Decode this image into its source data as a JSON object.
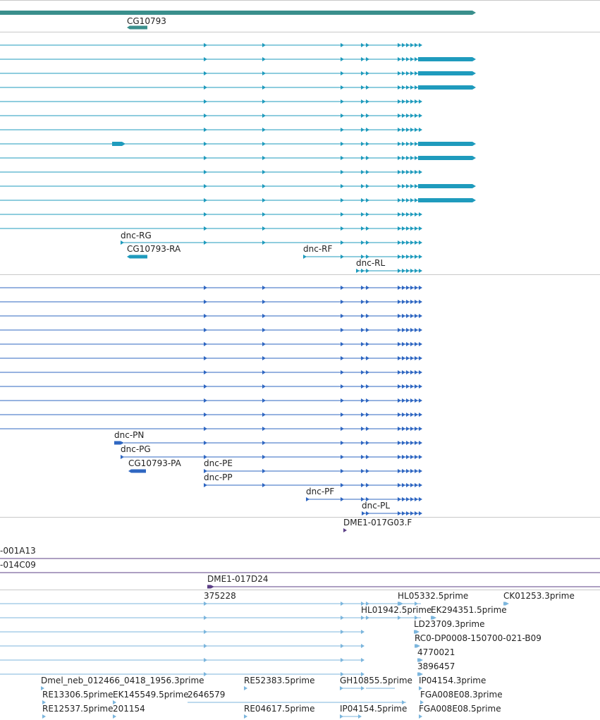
{
  "colors": {
    "gene": "#3a8f8c",
    "transcript": "#1f9bbd",
    "protein": "#2f67c2",
    "clone": "#5b3f86",
    "est": "#7cb6dd",
    "divider": "#c8c8c8"
  },
  "gene_track": {
    "labels": {
      "cg10793": "CG10793"
    }
  },
  "transcript_track": {
    "labels": {
      "dnc_rg": "dnc-RG",
      "cg10793_ra": "CG10793-RA",
      "dnc_rf": "dnc-RF",
      "dnc_rl": "dnc-RL"
    }
  },
  "protein_track": {
    "labels": {
      "dnc_pn": "dnc-PN",
      "dnc_pg": "dnc-PG",
      "cg10793_pa": "CG10793-PA",
      "dnc_pe": "dnc-PE",
      "dnc_pp": "dnc-PP",
      "dnc_pf": "dnc-PF",
      "dnc_pl": "dnc-PL"
    }
  },
  "clone_track": {
    "labels": {
      "dme1_017g03": "DME1-017G03.F",
      "clone_001a13": "-001A13",
      "clone_014c09": "-014C09",
      "dme1_017d24": "DME1-017D24"
    }
  },
  "est_track": {
    "labels": {
      "e375228": "375228",
      "hl05332": "HL05332.5prime",
      "ck01253": "CK01253.3prime",
      "hl01942": "HL01942.5prime",
      "ek294351": "EK294351.5prime",
      "ld23709": "LD23709.3prime",
      "rc0": "RC0-DP0008-150700-021-B09",
      "e4770021": "4770021",
      "e3896457": "3896457",
      "dmel_neb": "Dmel_neb_012466_0418_1956.3prime",
      "re52383": "RE52383.5prime",
      "gh10855": "GH10855.5prime",
      "ip04154_3": "IP04154.3prime",
      "re13306": "RE13306.5prime",
      "ek145549": "EK145549.5prime",
      "e2646579": "2646579",
      "fga008e08_3": "FGA008E08.3prime",
      "re12537": "RE12537.5prime",
      "e201154": "201154",
      "re04617": "RE04617.5prime",
      "ip04154_5": "IP04154.5prime",
      "fga008e08_5": "FGA008E08.5prime"
    }
  }
}
